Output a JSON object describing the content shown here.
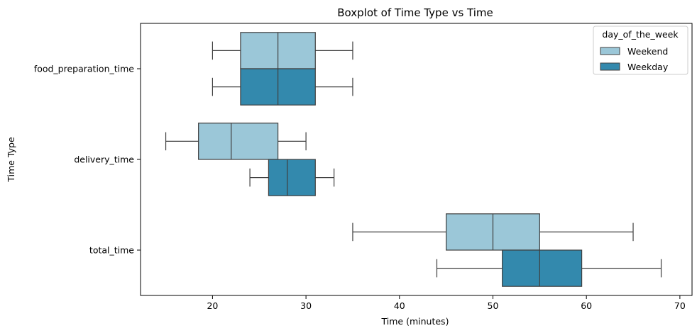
{
  "chart_data": {
    "type": "boxplot",
    "orientation": "horizontal",
    "title": "Boxplot of Time Type vs Time",
    "xlabel": "Time (minutes)",
    "ylabel": "Time Type",
    "xlim": [
      12.3,
      71.3
    ],
    "xticks": [
      20,
      30,
      40,
      50,
      60,
      70
    ],
    "categories": [
      "food_preparation_time",
      "delivery_time",
      "total_time"
    ],
    "grid": false,
    "legend": {
      "title": "day_of_the_week",
      "position": "top-right"
    },
    "series": [
      {
        "name": "Weekend",
        "color": "#9bc7d8",
        "boxes": [
          {
            "category": "food_preparation_time",
            "whisker_low": 20,
            "q1": 23,
            "median": 27,
            "q3": 31,
            "whisker_high": 35
          },
          {
            "category": "delivery_time",
            "whisker_low": 15,
            "q1": 18.5,
            "median": 22,
            "q3": 27,
            "whisker_high": 30
          },
          {
            "category": "total_time",
            "whisker_low": 35,
            "q1": 45,
            "median": 50,
            "q3": 55,
            "whisker_high": 65
          }
        ]
      },
      {
        "name": "Weekday",
        "color": "#3389ad",
        "boxes": [
          {
            "category": "food_preparation_time",
            "whisker_low": 20,
            "q1": 23,
            "median": 27,
            "q3": 31,
            "whisker_high": 35
          },
          {
            "category": "delivery_time",
            "whisker_low": 24,
            "q1": 26,
            "median": 28,
            "q3": 31,
            "whisker_high": 33
          },
          {
            "category": "total_time",
            "whisker_low": 44,
            "q1": 51,
            "median": 55,
            "q3": 59.5,
            "whisker_high": 68
          }
        ]
      }
    ]
  }
}
